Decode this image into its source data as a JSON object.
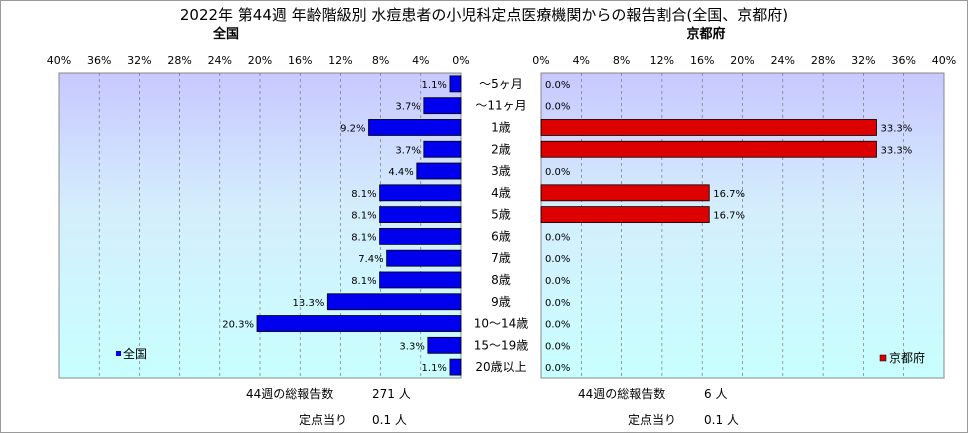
{
  "chart_data": {
    "type": "bar",
    "title": "2022年 第44週 年齢階級別 水痘患者の小児科定点医療機関からの報告割合(全国、京都府)",
    "categories": [
      "～5ヶ月",
      "～11ヶ月",
      "1歳",
      "2歳",
      "3歳",
      "4歳",
      "5歳",
      "6歳",
      "7歳",
      "8歳",
      "9歳",
      "10～14歳",
      "15～19歳",
      "20歳以上"
    ],
    "xlim": [
      0,
      40
    ],
    "ticks": [
      0,
      4,
      8,
      12,
      16,
      20,
      24,
      28,
      32,
      36,
      40
    ],
    "tick_labels_left": [
      "0%",
      "4%",
      "8%",
      "12%",
      "16%",
      "20%",
      "24%",
      "28%",
      "32%",
      "36%",
      "40%"
    ],
    "tick_labels_right": [
      "0%",
      "4%",
      "8%",
      "12%",
      "16%",
      "20%",
      "24%",
      "28%",
      "32%",
      "36%",
      "40%"
    ],
    "series": [
      {
        "name": "全国",
        "panel_title": "全国",
        "color": "#0000ee",
        "values": [
          1.1,
          3.7,
          9.2,
          3.7,
          4.4,
          8.1,
          8.1,
          8.1,
          7.4,
          8.1,
          13.3,
          20.3,
          3.3,
          1.1
        ],
        "labels": [
          "1.1%",
          "3.7%",
          "9.2%",
          "3.7%",
          "4.4%",
          "8.1%",
          "8.1%",
          "8.1%",
          "7.4%",
          "8.1%",
          "13.3%",
          "20.3%",
          "3.3%",
          "1.1%"
        ],
        "legend": "全国",
        "total_label": "44週の総報告数",
        "total_value": "271 人",
        "per_label": "定点当り",
        "per_value": "0.1 人"
      },
      {
        "name": "京都府",
        "panel_title": "京都府",
        "color": "#dd0000",
        "values": [
          0.0,
          0.0,
          33.3,
          33.3,
          0.0,
          16.7,
          16.7,
          0.0,
          0.0,
          0.0,
          0.0,
          0.0,
          0.0,
          0.0
        ],
        "labels": [
          "0.0%",
          "0.0%",
          "33.3%",
          "33.3%",
          "0.0%",
          "16.7%",
          "16.7%",
          "0.0%",
          "0.0%",
          "0.0%",
          "0.0%",
          "0.0%",
          "0.0%",
          "0.0%"
        ],
        "legend": "京都府",
        "total_label": "44週の総報告数",
        "total_value": "6 人",
        "per_label": "定点当り",
        "per_value": "0.1 人"
      }
    ],
    "grid": true,
    "plot_background": "gradient #ccccff to #ccffff"
  }
}
